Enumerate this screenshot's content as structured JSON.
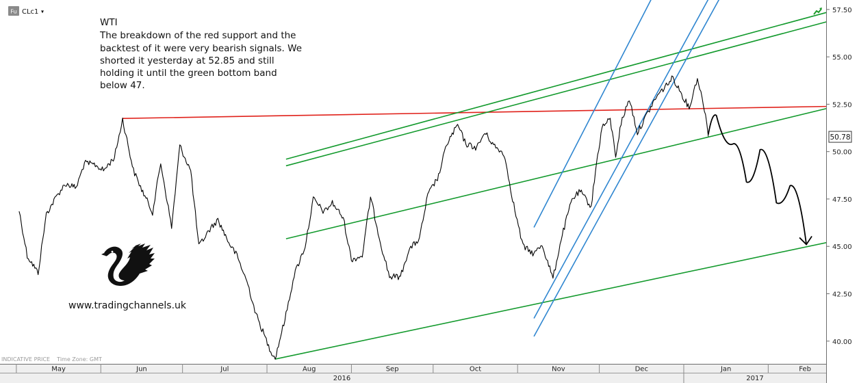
{
  "header": {
    "badge": "Fu",
    "symbol": "CLc1",
    "dropdown_glyph": "▾"
  },
  "annotation": {
    "lines": [
      "WTI",
      "The breakdown of the red support and the",
      "backtest of it were very bearish signals. We",
      "shorted it yesterday at 52.85 and still",
      "holding it until the green bottom band",
      "below 47."
    ]
  },
  "watermark": {
    "website": "www.tradingchannels.uk",
    "logo_icon": "griffin-logo-icon"
  },
  "footer": {
    "info": "INDICATIVE PRICE    Time Zone: GMT"
  },
  "icons": {
    "corner": "trend-arrow-icon"
  },
  "colors": {
    "support": "#e0211a",
    "channel": "#139a2d",
    "steep_channel": "#2f86d0",
    "price": "#000000",
    "projection": "#000000"
  },
  "chart_data": {
    "type": "line",
    "title": "",
    "series": [
      {
        "name": "CLc1",
        "points": [
          [
            "2016-05-02",
            46.9
          ],
          [
            "2016-05-05",
            44.5
          ],
          [
            "2016-05-09",
            43.6
          ],
          [
            "2016-05-12",
            46.7
          ],
          [
            "2016-05-16",
            47.7
          ],
          [
            "2016-05-19",
            48.3
          ],
          [
            "2016-05-23",
            48.1
          ],
          [
            "2016-05-26",
            49.4
          ],
          [
            "2016-05-30",
            49.3
          ],
          [
            "2016-06-02",
            49.0
          ],
          [
            "2016-06-06",
            49.7
          ],
          [
            "2016-06-09",
            51.7
          ],
          [
            "2016-06-13",
            49.0
          ],
          [
            "2016-06-16",
            48.0
          ],
          [
            "2016-06-20",
            46.8
          ],
          [
            "2016-06-23",
            49.4
          ],
          [
            "2016-06-27",
            46.0
          ],
          [
            "2016-06-30",
            50.3
          ],
          [
            "2016-07-04",
            49.0
          ],
          [
            "2016-07-07",
            45.0
          ],
          [
            "2016-07-11",
            45.9
          ],
          [
            "2016-07-14",
            46.4
          ],
          [
            "2016-07-18",
            45.2
          ],
          [
            "2016-07-21",
            44.5
          ],
          [
            "2016-07-25",
            43.0
          ],
          [
            "2016-07-28",
            41.4
          ],
          [
            "2016-08-02",
            39.6
          ],
          [
            "2016-08-04",
            39.1
          ],
          [
            "2016-08-08",
            41.4
          ],
          [
            "2016-08-11",
            43.5
          ],
          [
            "2016-08-15",
            45.0
          ],
          [
            "2016-08-18",
            47.5
          ],
          [
            "2016-08-22",
            46.8
          ],
          [
            "2016-08-25",
            47.3
          ],
          [
            "2016-08-29",
            46.5
          ],
          [
            "2016-09-01",
            44.3
          ],
          [
            "2016-09-05",
            44.5
          ],
          [
            "2016-09-08",
            47.6
          ],
          [
            "2016-09-12",
            45.0
          ],
          [
            "2016-09-15",
            43.4
          ],
          [
            "2016-09-19",
            43.4
          ],
          [
            "2016-09-22",
            44.8
          ],
          [
            "2016-09-26",
            45.4
          ],
          [
            "2016-09-29",
            47.7
          ],
          [
            "2016-10-03",
            48.7
          ],
          [
            "2016-10-06",
            50.4
          ],
          [
            "2016-10-10",
            51.4
          ],
          [
            "2016-10-13",
            50.4
          ],
          [
            "2016-10-17",
            50.2
          ],
          [
            "2016-10-20",
            51.0
          ],
          [
            "2016-10-24",
            50.2
          ],
          [
            "2016-10-27",
            49.9
          ],
          [
            "2016-10-31",
            46.9
          ],
          [
            "2016-11-03",
            45.0
          ],
          [
            "2016-11-07",
            44.6
          ],
          [
            "2016-11-10",
            45.1
          ],
          [
            "2016-11-14",
            43.3
          ],
          [
            "2016-11-17",
            45.4
          ],
          [
            "2016-11-21",
            47.5
          ],
          [
            "2016-11-24",
            47.9
          ],
          [
            "2016-11-28",
            47.1
          ],
          [
            "2016-11-30",
            49.4
          ],
          [
            "2016-12-02",
            51.3
          ],
          [
            "2016-12-05",
            51.7
          ],
          [
            "2016-12-07",
            49.8
          ],
          [
            "2016-12-09",
            51.5
          ],
          [
            "2016-12-12",
            52.8
          ],
          [
            "2016-12-15",
            51.0
          ],
          [
            "2016-12-19",
            52.1
          ],
          [
            "2016-12-22",
            52.9
          ],
          [
            "2016-12-28",
            53.9
          ],
          [
            "2017-01-03",
            52.3
          ],
          [
            "2017-01-06",
            53.9
          ],
          [
            "2017-01-09",
            52.0
          ],
          [
            "2017-01-10",
            50.8
          ]
        ]
      }
    ],
    "last_value": "50.78",
    "ylim": [
      38.8,
      58.0
    ],
    "y_ticks": [
      "40.00",
      "42.50",
      "45.00",
      "47.50",
      "50.00",
      "52.50",
      "55.00",
      "57.50"
    ],
    "x_range": [
      "2016-04-25",
      "2017-02-28"
    ],
    "months": [
      {
        "label": "May",
        "date": "2016-05-01"
      },
      {
        "label": "Jun",
        "date": "2016-06-01"
      },
      {
        "label": "Jul",
        "date": "2016-07-01"
      },
      {
        "label": "Aug",
        "date": "2016-08-01"
      },
      {
        "label": "Sep",
        "date": "2016-09-01"
      },
      {
        "label": "Oct",
        "date": "2016-10-01"
      },
      {
        "label": "Nov",
        "date": "2016-11-01"
      },
      {
        "label": "Dec",
        "date": "2016-12-01"
      },
      {
        "label": "Jan",
        "date": "2017-01-01"
      },
      {
        "label": "Feb",
        "date": "2017-02-01"
      }
    ],
    "years": [
      {
        "label": "2016",
        "date": "2016-09-01"
      },
      {
        "label": "2017",
        "date": "2017-02-01"
      }
    ],
    "trendlines": [
      {
        "name": "red-support-line",
        "color": "support",
        "from": [
          "2016-06-09",
          51.75
        ],
        "to": [
          "2017-03-01",
          52.4
        ]
      },
      {
        "name": "green-upper-line-1",
        "color": "channel",
        "from": [
          "2016-08-08",
          49.6
        ],
        "to": [
          "2017-03-01",
          57.6
        ]
      },
      {
        "name": "green-upper-line-2",
        "color": "channel",
        "from": [
          "2016-08-08",
          49.25
        ],
        "to": [
          "2017-03-01",
          57.1
        ]
      },
      {
        "name": "green-middle-line",
        "color": "channel",
        "from": [
          "2016-08-08",
          45.4
        ],
        "to": [
          "2017-03-01",
          52.5
        ]
      },
      {
        "name": "green-bottom-line",
        "color": "channel",
        "from": [
          "2016-08-04",
          39.05
        ],
        "to": [
          "2017-03-01",
          45.4
        ]
      },
      {
        "name": "blue-channel-line-1",
        "color": "steep_channel",
        "from": [
          "2016-11-07",
          46.0
        ],
        "to": [
          "2016-12-21",
          58.3
        ]
      },
      {
        "name": "blue-channel-line-2",
        "color": "steep_channel",
        "from": [
          "2016-11-07",
          41.2
        ],
        "to": [
          "2017-01-11",
          58.3
        ]
      },
      {
        "name": "blue-channel-line-3",
        "color": "steep_channel",
        "from": [
          "2016-11-07",
          40.25
        ],
        "to": [
          "2017-01-15",
          58.3
        ]
      }
    ],
    "projection": {
      "points": [
        [
          "2017-01-10",
          50.9
        ],
        [
          "2017-01-13",
          51.9
        ],
        [
          "2017-01-19",
          50.4
        ],
        [
          "2017-01-24",
          48.4
        ],
        [
          "2017-01-29",
          50.1
        ],
        [
          "2017-02-04",
          47.3
        ],
        [
          "2017-02-09",
          48.2
        ],
        [
          "2017-02-15",
          45.1
        ]
      ]
    }
  }
}
